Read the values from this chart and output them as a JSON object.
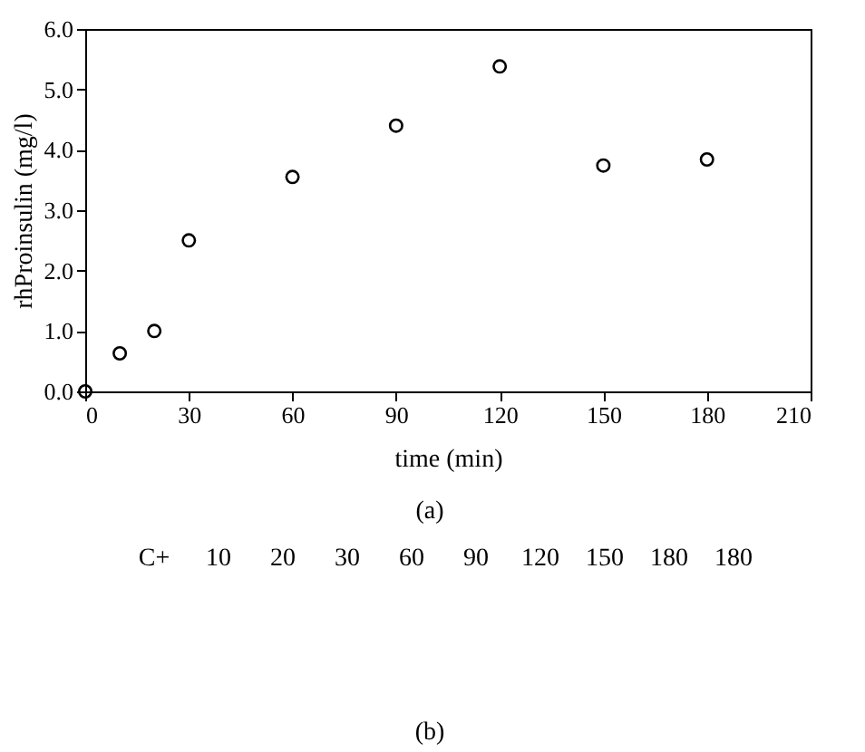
{
  "chart_data": {
    "type": "scatter",
    "xlabel": "time (min)",
    "ylabel": "rhProinsulin (mg/l)",
    "x": [
      0,
      10,
      20,
      30,
      60,
      90,
      120,
      150,
      180
    ],
    "series": [
      {
        "color": "#000000",
        "values": [
          0.0,
          0.63,
          1.0,
          2.5,
          3.55,
          4.4,
          5.38,
          3.74,
          3.84
        ]
      }
    ],
    "xlim": [
      0,
      210
    ],
    "xticks": [
      0,
      30,
      60,
      90,
      120,
      150,
      180,
      210
    ],
    "ylim": [
      0,
      6
    ],
    "yticks": [
      {
        "value": 0,
        "label": "0.0"
      },
      {
        "value": 1,
        "label": "1.0"
      },
      {
        "value": 2,
        "label": "2.0"
      },
      {
        "value": 3,
        "label": "3.0"
      },
      {
        "value": 4,
        "label": "4.0"
      },
      {
        "value": 5,
        "label": "5.0"
      },
      {
        "value": 6,
        "label": "6.0"
      }
    ],
    "marker": "circle",
    "grid": false,
    "legend": false,
    "annotations": [
      "(a)",
      "C+",
      "10",
      "20",
      "30",
      "60",
      "90",
      "120",
      "150",
      "180",
      "180",
      "(b)"
    ]
  }
}
